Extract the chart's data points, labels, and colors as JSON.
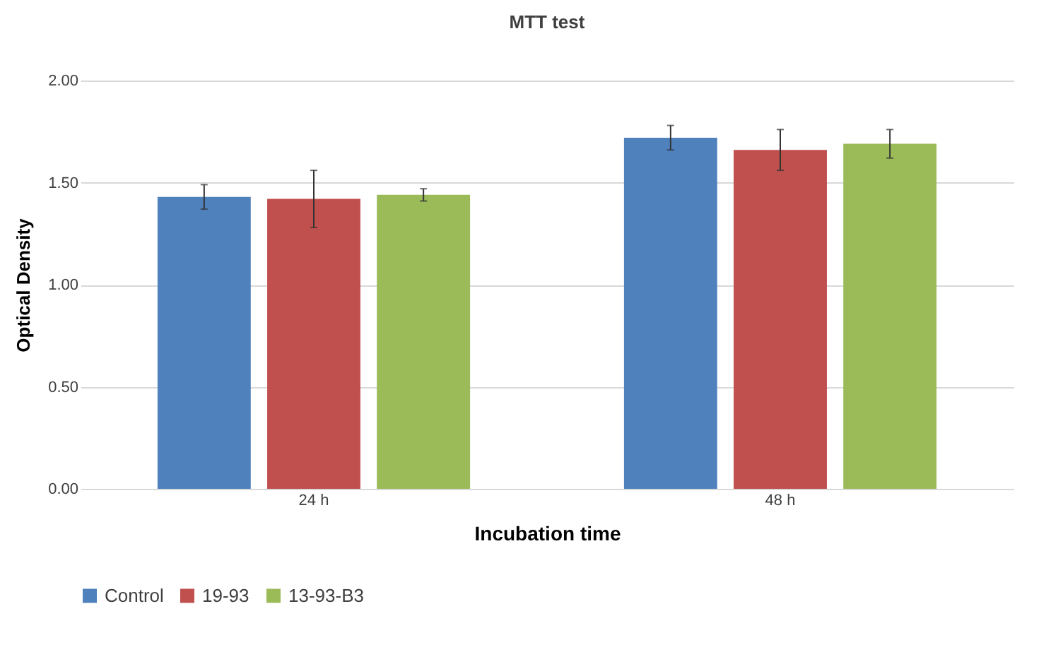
{
  "chart_data": {
    "type": "bar",
    "title": "MTT test",
    "xlabel": "Incubation time",
    "ylabel": "Optical Density",
    "categories": [
      "24 h",
      "48 h"
    ],
    "series": [
      {
        "name": "Control",
        "color": "#4f81bd",
        "values": [
          1.43,
          1.72
        ],
        "errors": [
          0.06,
          0.06
        ]
      },
      {
        "name": "19-93",
        "color": "#c0504d",
        "values": [
          1.42,
          1.66
        ],
        "errors": [
          0.14,
          0.1
        ]
      },
      {
        "name": "13-93-B3",
        "color": "#9bbb59",
        "values": [
          1.44,
          1.69
        ],
        "errors": [
          0.03,
          0.07
        ]
      }
    ],
    "ylim": [
      0,
      2
    ],
    "yticks": [
      {
        "value": 0,
        "label": "0.00"
      },
      {
        "value": 0.5,
        "label": "0.50"
      },
      {
        "value": 1,
        "label": "1.00"
      },
      {
        "value": 1.5,
        "label": "1.50"
      },
      {
        "value": 2,
        "label": "2.00"
      }
    ],
    "grid": "y",
    "legend": "bottom"
  }
}
